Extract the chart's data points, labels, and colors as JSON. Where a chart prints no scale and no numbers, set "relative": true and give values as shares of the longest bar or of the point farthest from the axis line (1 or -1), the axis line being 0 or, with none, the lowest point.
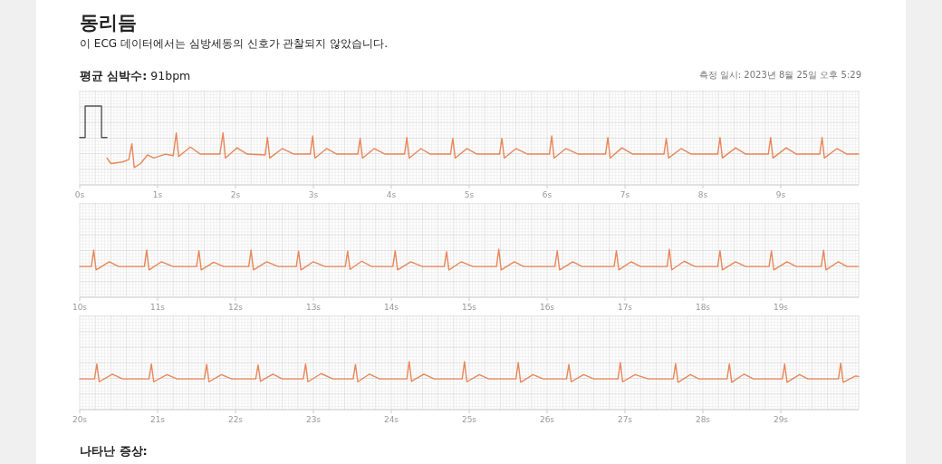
{
  "chart_data": [
    {
      "type": "line",
      "title": "동리듬",
      "subtitle": "이 ECG 데이터에서는 심방세동의 신호가 관찰되지 않았습니다.",
      "annotations": [
        "**평균 심박수:** 91bpm",
        "측정 일시: 2023년 8월 25일 오후 5:29"
      ],
      "relative": true,
      "grid": true,
      "xlim": [
        0,
        10
      ],
      "xticks": [
        {
          "value": 0,
          "label": "0s"
        },
        {
          "value": 1,
          "label": "1s"
        },
        {
          "value": 2,
          "label": "2s"
        },
        {
          "value": 3,
          "label": "3s"
        },
        {
          "value": 4,
          "label": "4s"
        },
        {
          "value": 5,
          "label": "5s"
        },
        {
          "value": 6,
          "label": "6s"
        },
        {
          "value": 7,
          "label": "7s"
        },
        {
          "value": 8,
          "label": "8s"
        },
        {
          "value": 9,
          "label": "9s"
        }
      ],
      "series": [
        {
          "color": "#555555",
          "x": [
            0,
            0.07,
            0.07,
            0.28,
            0.28,
            0.35
          ],
          "values": [
            0.6,
            0.6,
            1,
            1,
            0.6,
            0.6
          ]
        },
        {
          "color": "#e8875a",
          "x": [
            0.35,
            0.4,
            0.55,
            0.63,
            0.67,
            0.7,
            0.78,
            0.87,
            0.95,
            1.1,
            1.2,
            1.24,
            1.27,
            1.42,
            1.55,
            1.8,
            1.84,
            1.87,
            2.02,
            2.15,
            2.38,
            2.41,
            2.44,
            2.6,
            2.75,
            2.96,
            2.99,
            3.02,
            3.17,
            3.3,
            3.57,
            3.6,
            3.63,
            3.78,
            3.92,
            4.17,
            4.2,
            4.23,
            4.38,
            4.5,
            4.76,
            4.79,
            4.82,
            4.97,
            5.1,
            5.39,
            5.42,
            5.45,
            5.6,
            5.75,
            6.03,
            6.06,
            6.09,
            6.24,
            6.4,
            6.75,
            6.78,
            6.81,
            6.96,
            7.1,
            7.5,
            7.53,
            7.56,
            7.72,
            7.85,
            8.19,
            8.22,
            8.25,
            8.42,
            8.55,
            8.84,
            8.87,
            8.9,
            9.07,
            9.2,
            9.5,
            9.53,
            9.56,
            9.72,
            9.85,
            10
          ],
          "values": [
            0.34,
            0.27,
            0.29,
            0.32,
            0.52,
            0.22,
            0.27,
            0.38,
            0.34,
            0.39,
            0.37,
            0.66,
            0.36,
            0.48,
            0.39,
            0.39,
            0.66,
            0.34,
            0.47,
            0.39,
            0.38,
            0.6,
            0.34,
            0.46,
            0.39,
            0.39,
            0.62,
            0.34,
            0.46,
            0.39,
            0.39,
            0.59,
            0.34,
            0.46,
            0.39,
            0.39,
            0.6,
            0.34,
            0.46,
            0.39,
            0.39,
            0.59,
            0.34,
            0.46,
            0.39,
            0.39,
            0.59,
            0.34,
            0.46,
            0.39,
            0.39,
            0.62,
            0.34,
            0.46,
            0.39,
            0.39,
            0.6,
            0.34,
            0.47,
            0.39,
            0.39,
            0.59,
            0.34,
            0.46,
            0.39,
            0.39,
            0.6,
            0.34,
            0.47,
            0.39,
            0.39,
            0.6,
            0.34,
            0.47,
            0.39,
            0.39,
            0.6,
            0.34,
            0.46,
            0.39,
            0.39
          ]
        }
      ]
    },
    {
      "type": "line",
      "relative": true,
      "grid": true,
      "xlim": [
        10,
        20
      ],
      "xticks": [
        {
          "value": 10,
          "label": "10s"
        },
        {
          "value": 11,
          "label": "11s"
        },
        {
          "value": 12,
          "label": "12s"
        },
        {
          "value": 13,
          "label": "13s"
        },
        {
          "value": 14,
          "label": "14s"
        },
        {
          "value": 15,
          "label": "15s"
        },
        {
          "value": 16,
          "label": "16s"
        },
        {
          "value": 17,
          "label": "17s"
        },
        {
          "value": 18,
          "label": "18s"
        },
        {
          "value": 19,
          "label": "19s"
        }
      ],
      "series": [
        {
          "color": "#e8875a",
          "x": [
            10,
            10.15,
            10.18,
            10.21,
            10.38,
            10.5,
            10.83,
            10.86,
            10.89,
            11.05,
            11.2,
            11.5,
            11.53,
            11.56,
            11.72,
            11.85,
            12.17,
            12.2,
            12.23,
            12.4,
            12.55,
            12.78,
            12.81,
            12.84,
            13.0,
            13.15,
            13.41,
            13.44,
            13.47,
            13.62,
            13.75,
            14.02,
            14.05,
            14.08,
            14.25,
            14.4,
            14.68,
            14.71,
            14.74,
            14.9,
            15.05,
            15.35,
            15.38,
            15.41,
            15.58,
            15.7,
            16.1,
            16.13,
            16.16,
            16.33,
            16.45,
            16.86,
            16.89,
            16.92,
            17.08,
            17.2,
            17.54,
            17.57,
            17.6,
            17.76,
            17.9,
            18.19,
            18.22,
            18.25,
            18.42,
            18.55,
            18.85,
            18.88,
            18.91,
            19.08,
            19.2,
            19.52,
            19.55,
            19.58,
            19.74,
            19.85,
            20
          ],
          "values": [
            0.64,
            0.64,
            0.98,
            0.57,
            0.74,
            0.64,
            0.64,
            0.98,
            0.57,
            0.74,
            0.64,
            0.64,
            0.97,
            0.57,
            0.73,
            0.64,
            0.64,
            0.98,
            0.57,
            0.74,
            0.64,
            0.64,
            0.96,
            0.57,
            0.74,
            0.64,
            0.64,
            0.96,
            0.58,
            0.75,
            0.64,
            0.64,
            0.97,
            0.57,
            0.74,
            0.64,
            0.64,
            0.95,
            0.57,
            0.74,
            0.64,
            0.64,
            1.0,
            0.57,
            0.74,
            0.64,
            0.64,
            0.97,
            0.57,
            0.74,
            0.64,
            0.64,
            0.97,
            0.57,
            0.74,
            0.64,
            0.64,
            1.0,
            0.57,
            0.75,
            0.64,
            0.64,
            0.97,
            0.57,
            0.74,
            0.64,
            0.64,
            0.97,
            0.57,
            0.74,
            0.64,
            0.64,
            0.98,
            0.57,
            0.74,
            0.64,
            0.64
          ]
        }
      ]
    },
    {
      "type": "line",
      "relative": true,
      "grid": true,
      "xlim": [
        20,
        30
      ],
      "annotations": [
        "나타난 증상:"
      ],
      "xticks": [
        {
          "value": 20,
          "label": "20s"
        },
        {
          "value": 21,
          "label": "21s"
        },
        {
          "value": 22,
          "label": "22s"
        },
        {
          "value": 23,
          "label": "23s"
        },
        {
          "value": 24,
          "label": "24s"
        },
        {
          "value": 25,
          "label": "25s"
        },
        {
          "value": 26,
          "label": "26s"
        },
        {
          "value": 27,
          "label": "27s"
        },
        {
          "value": 28,
          "label": "28s"
        },
        {
          "value": 29,
          "label": "29s"
        }
      ],
      "series": [
        {
          "color": "#e8875a",
          "x": [
            20,
            20.19,
            20.22,
            20.25,
            20.42,
            20.55,
            20.89,
            20.92,
            20.95,
            21.12,
            21.25,
            21.6,
            21.63,
            21.66,
            21.82,
            21.95,
            22.26,
            22.29,
            22.32,
            22.48,
            22.6,
            22.87,
            22.9,
            22.93,
            23.1,
            23.25,
            23.51,
            23.54,
            23.57,
            23.72,
            23.85,
            24.2,
            24.23,
            24.26,
            24.42,
            24.55,
            24.91,
            24.94,
            24.97,
            25.13,
            25.25,
            25.6,
            25.63,
            25.66,
            25.82,
            25.95,
            26.25,
            26.28,
            26.31,
            26.47,
            26.6,
            26.91,
            26.94,
            26.97,
            27.13,
            27.3,
            27.62,
            27.65,
            27.68,
            27.84,
            27.95,
            28.31,
            28.34,
            28.37,
            28.53,
            28.65,
            29.02,
            29.05,
            29.08,
            29.24,
            29.35,
            29.74,
            29.77,
            29.8,
            29.96,
            30
          ],
          "values": [
            0.64,
            0.64,
            0.95,
            0.58,
            0.74,
            0.64,
            0.64,
            0.95,
            0.58,
            0.73,
            0.64,
            0.64,
            0.94,
            0.58,
            0.73,
            0.64,
            0.64,
            0.93,
            0.59,
            0.74,
            0.64,
            0.64,
            0.95,
            0.58,
            0.75,
            0.64,
            0.64,
            0.94,
            0.58,
            0.74,
            0.64,
            0.64,
            1.0,
            0.59,
            0.74,
            0.64,
            0.64,
            1.0,
            0.58,
            0.73,
            0.64,
            0.64,
            0.98,
            0.57,
            0.73,
            0.64,
            0.64,
            0.94,
            0.58,
            0.73,
            0.64,
            0.64,
            0.98,
            0.58,
            0.73,
            0.64,
            0.64,
            0.96,
            0.57,
            0.73,
            0.64,
            0.64,
            0.95,
            0.57,
            0.74,
            0.64,
            0.64,
            0.95,
            0.57,
            0.73,
            0.64,
            0.64,
            0.97,
            0.57,
            0.7,
            0.69
          ]
        }
      ]
    }
  ]
}
